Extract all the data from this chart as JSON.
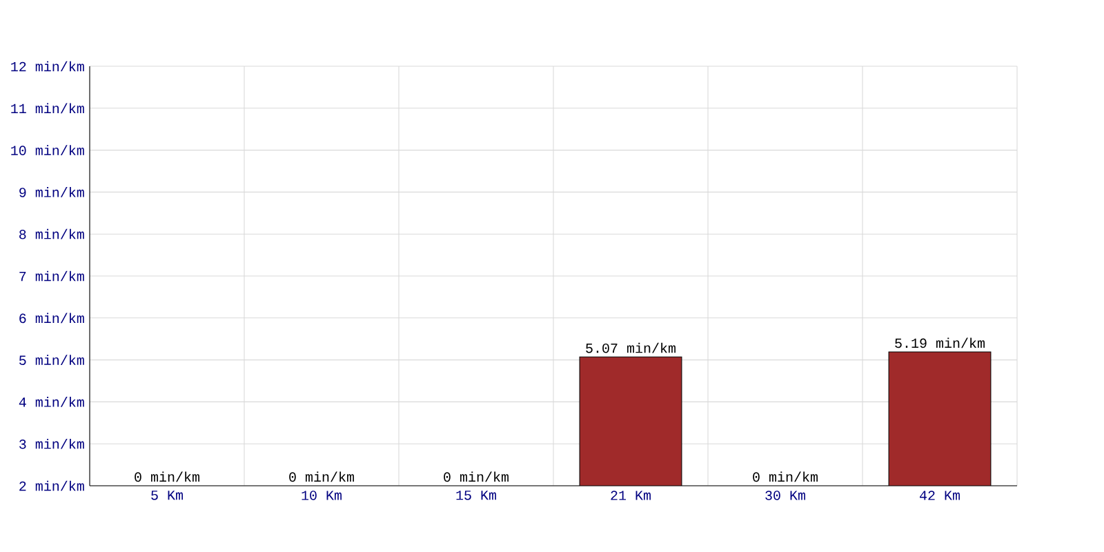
{
  "chart_data": {
    "type": "bar",
    "categories": [
      "5 Km",
      "10 Km",
      "15 Km",
      "21 Km",
      "30 Km",
      "42 Km"
    ],
    "values": [
      null,
      null,
      null,
      5.07,
      null,
      5.19
    ],
    "value_labels": [
      "0 min/km",
      "0 min/km",
      "0 min/km",
      "5.07 min/km",
      "0 min/km",
      "5.19 min/km"
    ],
    "color": "#a02a2a",
    "ylim": [
      2,
      12
    ],
    "yticks": [
      {
        "value": 2,
        "label": "2 min/km"
      },
      {
        "value": 3,
        "label": "3 min/km"
      },
      {
        "value": 4,
        "label": "4 min/km"
      },
      {
        "value": 5,
        "label": "5 min/km"
      },
      {
        "value": 6,
        "label": "6 min/km"
      },
      {
        "value": 7,
        "label": "7 min/km"
      },
      {
        "value": 8,
        "label": "8 min/km"
      },
      {
        "value": 9,
        "label": "9 min/km"
      },
      {
        "value": 10,
        "label": "10 min/km"
      },
      {
        "value": 11,
        "label": "11 min/km"
      },
      {
        "value": 12,
        "label": "12 min/km"
      }
    ],
    "grid": true
  }
}
